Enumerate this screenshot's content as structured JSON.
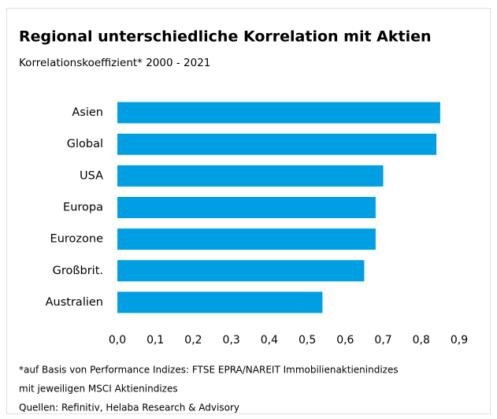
{
  "chart_data": {
    "type": "hbar",
    "title": "Regional unterschiedliche Korrelation mit Aktien",
    "subtitle": "Korrelationskoeffizient* 2000 - 2021",
    "categories": [
      "Asien",
      "Global",
      "USA",
      "Europa",
      "Eurozone",
      "Großbrit.",
      "Australien"
    ],
    "values": [
      0.85,
      0.84,
      0.7,
      0.68,
      0.68,
      0.65,
      0.54
    ],
    "color": "#009fe3",
    "xlim": [
      0,
      0.9
    ],
    "xticks": [
      {
        "value": 0,
        "label": "0,0"
      },
      {
        "value": 0.1,
        "label": "0,1"
      },
      {
        "value": 0.2,
        "label": "0,2"
      },
      {
        "value": 0.3,
        "label": "0,3"
      },
      {
        "value": 0.4,
        "label": "0,4"
      },
      {
        "value": 0.5,
        "label": "0,5"
      },
      {
        "value": 0.6,
        "label": "0,6"
      },
      {
        "value": 0.7,
        "label": "0,7"
      },
      {
        "value": 0.8,
        "label": "0,8"
      },
      {
        "value": 0.9,
        "label": "0,9"
      }
    ],
    "grid": false,
    "notes": [
      "*auf Basis von Performance Indizes: FTSE EPRA/NAREIT Immobilienaktienindizes",
      "mit jeweiligen MSCI Aktienindizes",
      "Quellen: Refinitiv, Helaba Research & Advisory"
    ]
  }
}
